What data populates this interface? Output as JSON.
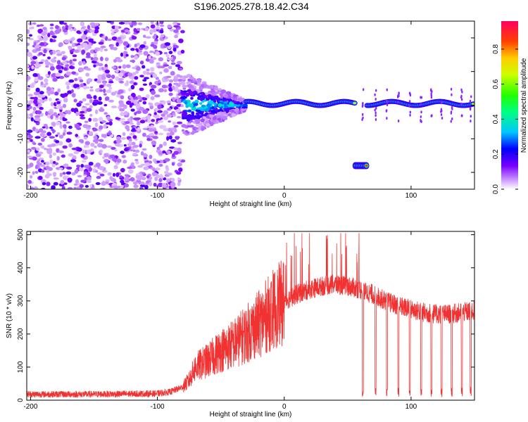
{
  "title": "S196.2025.278.18.42.C34",
  "chart_data": [
    {
      "type": "heatmap",
      "name": "spectrogram",
      "xlabel": "Height of straight line (km)",
      "ylabel": "Frequency (Hz)",
      "xlim": [
        -203,
        150
      ],
      "ylim": [
        -25,
        25
      ],
      "xticks": [
        -200,
        -100,
        0,
        100
      ],
      "yticks": [
        -20,
        -10,
        0,
        10,
        20
      ],
      "colorbar": {
        "label": "Normalized spectral amplitude",
        "range": [
          0,
          1
        ],
        "ticks": [
          "0.0",
          "0.2",
          "0.4",
          "0.6",
          "0.8"
        ]
      },
      "features": [
        {
          "description": "broadband noise",
          "x_range": [
            -203,
            -80
          ],
          "frequency_range": [
            -25,
            25
          ]
        },
        {
          "description": "converging signal",
          "x_range": [
            -80,
            -30
          ],
          "frequency_range": [
            -8,
            8
          ]
        },
        {
          "description": "steady carrier near 0 Hz",
          "x_range": [
            -30,
            150
          ],
          "frequency": 0.5
        },
        {
          "description": "gap in carrier",
          "x_range": [
            56,
            65
          ]
        },
        {
          "description": "low-frequency tone",
          "x_range": [
            56,
            65
          ],
          "frequency": -18
        }
      ]
    },
    {
      "type": "line",
      "name": "snr",
      "xlabel": "Height of straight line (km)",
      "ylabel": "SNR (10 * v/v)",
      "xlim": [
        -203,
        150
      ],
      "ylim": [
        0,
        510
      ],
      "xticks": [
        -200,
        -100,
        0,
        100
      ],
      "yticks": [
        0,
        100,
        200,
        300,
        400,
        500
      ],
      "color": "#f03232",
      "envelope": {
        "x": [
          -203,
          -150,
          -100,
          -90,
          -80,
          -75,
          -70,
          -60,
          -50,
          -40,
          -30,
          -20,
          -10,
          0,
          10,
          20,
          30,
          40,
          50,
          60,
          62,
          70,
          80,
          90,
          100,
          110,
          120,
          130,
          140,
          150
        ],
        "y": [
          18,
          18,
          20,
          25,
          40,
          60,
          100,
          120,
          150,
          170,
          200,
          230,
          270,
          300,
          320,
          335,
          345,
          350,
          345,
          335,
          330,
          320,
          300,
          285,
          275,
          265,
          260,
          260,
          265,
          270
        ]
      },
      "dropouts_x": [
        62,
        72,
        81,
        90,
        99,
        108,
        116,
        124,
        132,
        140,
        147
      ]
    }
  ]
}
